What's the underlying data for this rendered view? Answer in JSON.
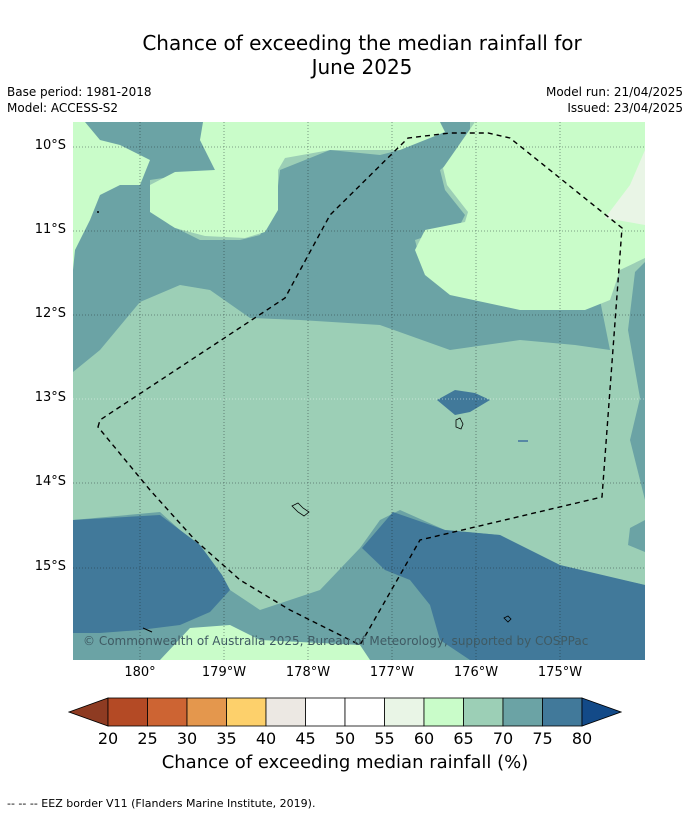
{
  "title_line1": "Chance of exceeding the median rainfall for",
  "title_line2": "June 2025",
  "meta_left": [
    "Base period: 1981-2018",
    "Model: ACCESS-S2"
  ],
  "meta_right": [
    "Model run: 21/04/2025",
    "Issued: 23/04/2025"
  ],
  "copyright": "© Commonwealth of Australia 2025, Bureau of Meteorology, supported by COSPPac",
  "lat_labels": [
    "10°S",
    "11°S",
    "12°S",
    "13°S",
    "14°S",
    "15°S"
  ],
  "lon_labels": [
    "180°",
    "179°W",
    "178°W",
    "177°W",
    "176°W",
    "175°W"
  ],
  "colorbar": {
    "ticks": [
      "20",
      "25",
      "30",
      "35",
      "40",
      "45",
      "50",
      "55",
      "60",
      "65",
      "70",
      "75",
      "80"
    ],
    "label": "Chance of exceeding median rainfall (%)",
    "colors": {
      "below_20": "#8e3b22",
      "20_25": "#b44a25",
      "25_30": "#cd6433",
      "30_35": "#e4974d",
      "35_40": "#fdd06b",
      "40_45": "#ece8e3",
      "45_50": "#ffffff",
      "50_55": "#ffffff",
      "55_60": "#e9f5e6",
      "60_65": "#c9fcc9",
      "65_70": "#9ccfb6",
      "70_75": "#6ba3a5",
      "75_80": "#41799a",
      "above_80": "#134a88"
    }
  },
  "footnote": "--  --  -- EEZ border V11 (Flanders Marine Institute, 2019)."
}
